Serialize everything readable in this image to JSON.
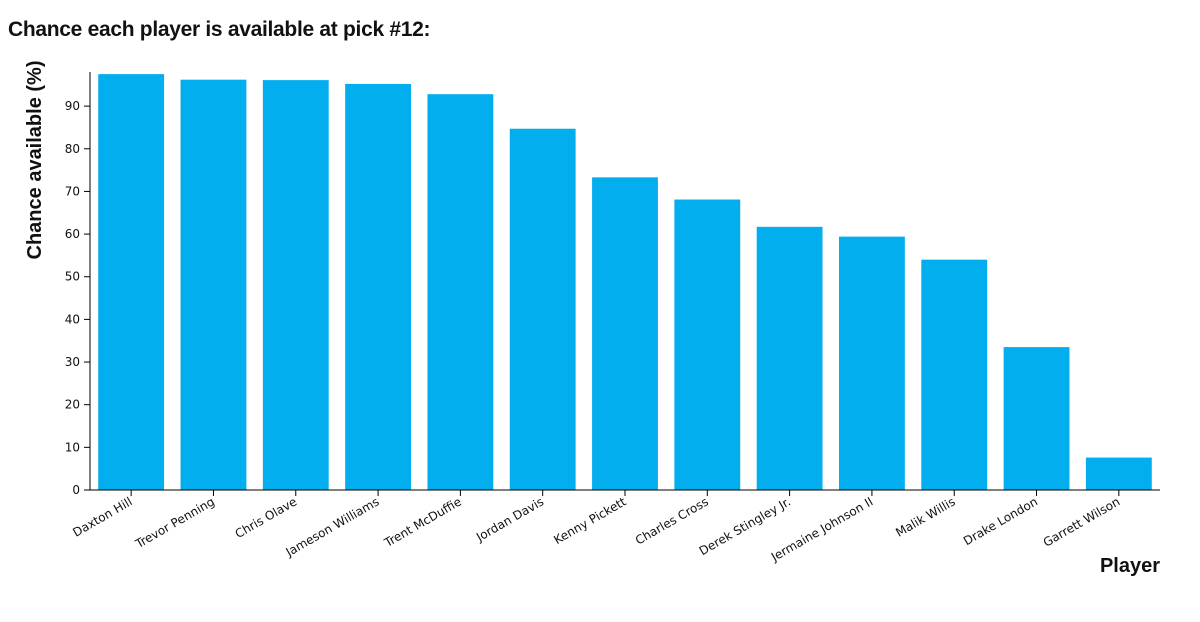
{
  "chart_data": {
    "type": "bar",
    "title": "Chance each player is available at pick #12:",
    "xlabel": "Player",
    "ylabel": "Chance available (%)",
    "ylim": [
      0,
      98
    ],
    "yticks": [
      0,
      10,
      20,
      30,
      40,
      50,
      60,
      70,
      80,
      90
    ],
    "grid": false,
    "bar_color": "#03aeef",
    "categories": [
      "Daxton Hill",
      "Trevor Penning",
      "Chris Olave",
      "Jameson Williams",
      "Trent McDuffie",
      "Jordan Davis",
      "Kenny Pickett",
      "Charles Cross",
      "Derek Stingley Jr.",
      "Jermaine Johnson II",
      "Malik Willis",
      "Drake London",
      "Garrett Wilson"
    ],
    "values": [
      97.5,
      96.2,
      96.1,
      95.2,
      92.8,
      84.7,
      73.3,
      68.1,
      61.7,
      59.4,
      54.0,
      33.5,
      7.6
    ]
  }
}
